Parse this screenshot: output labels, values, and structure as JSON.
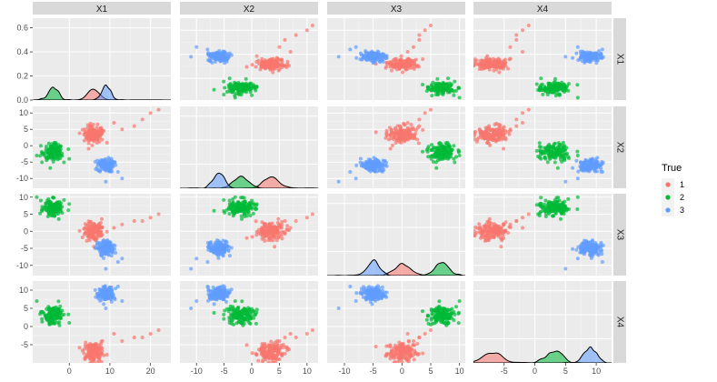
{
  "chart_data": {
    "type": "scatter",
    "subtype": "pairs-matrix",
    "variables": [
      "X1",
      "X2",
      "X3",
      "X4"
    ],
    "diagonal": "density",
    "off_diagonal": "scatter",
    "legend": {
      "title": "True",
      "position": "right",
      "entries": [
        {
          "label": "1",
          "color": "#F8766D"
        },
        {
          "label": "2",
          "color": "#00BA38"
        },
        {
          "label": "3",
          "color": "#619CFF"
        }
      ]
    },
    "groups": [
      {
        "label": "1",
        "color": "#F8766D",
        "mean": [
          6,
          3.5,
          0,
          -7
        ],
        "sd": [
          1.2,
          1.3,
          1.3,
          1.3
        ]
      },
      {
        "label": "2",
        "color": "#00BA38",
        "mean": [
          -4,
          -2,
          7,
          3
        ],
        "sd": [
          1.2,
          1.2,
          1.2,
          1.2
        ]
      },
      {
        "label": "3",
        "color": "#619CFF",
        "mean": [
          9,
          -6,
          -5,
          9
        ],
        "sd": [
          1.0,
          1.0,
          1.0,
          1.0
        ]
      }
    ],
    "points_per_group": 150,
    "outliers": [
      {
        "group": "1",
        "values": [
          13,
          5,
          2,
          -4
        ]
      },
      {
        "group": "1",
        "values": [
          16,
          6,
          3,
          -3
        ]
      },
      {
        "group": "1",
        "values": [
          20,
          10,
          4,
          -2
        ]
      },
      {
        "group": "1",
        "values": [
          22,
          11,
          5,
          -1
        ]
      },
      {
        "group": "1",
        "values": [
          11,
          7,
          1,
          -2
        ]
      },
      {
        "group": "1",
        "values": [
          18,
          8,
          3,
          -3
        ]
      },
      {
        "group": "2",
        "values": [
          -7,
          0,
          9,
          4
        ]
      },
      {
        "group": "2",
        "values": [
          -8,
          -3,
          10,
          7
        ]
      },
      {
        "group": "2",
        "values": [
          0,
          -4,
          8,
          1
        ]
      },
      {
        "group": "3",
        "values": [
          9,
          -11,
          -11,
          5
        ]
      },
      {
        "group": "3",
        "values": [
          13,
          -10,
          -8,
          7
        ]
      },
      {
        "group": "3",
        "values": [
          12,
          -8,
          -9,
          11
        ]
      }
    ],
    "axes": {
      "X1": {
        "lim": [
          -9,
          25
        ],
        "ticks": [
          0,
          10,
          20
        ]
      },
      "X2": {
        "lim": [
          -13,
          12
        ],
        "ticks": [
          -10,
          -5,
          0,
          5,
          10
        ]
      },
      "X3": {
        "lim": [
          -13,
          11
        ],
        "ticks": [
          -10,
          -5,
          0,
          5,
          10
        ]
      },
      "X4": {
        "lim": [
          -10,
          12.5
        ],
        "ticks": [
          -5,
          0,
          5,
          10
        ]
      }
    },
    "diag_y_axis": {
      "lim": [
        0,
        0.68
      ],
      "ticks": [
        0.0,
        0.2,
        0.4,
        0.6
      ],
      "tick_labels": [
        "0.0",
        "0.2",
        "0.4",
        "0.6"
      ]
    },
    "tick_labels": {
      "X1": [
        "0",
        "10",
        "20"
      ],
      "X2": [
        "-10",
        "-5",
        "0",
        "5",
        "10"
      ],
      "X3": [
        "-10",
        "-5",
        "0",
        "5",
        "10"
      ],
      "X4": [
        "-5",
        "0",
        "5",
        "10"
      ]
    },
    "grid": true
  }
}
